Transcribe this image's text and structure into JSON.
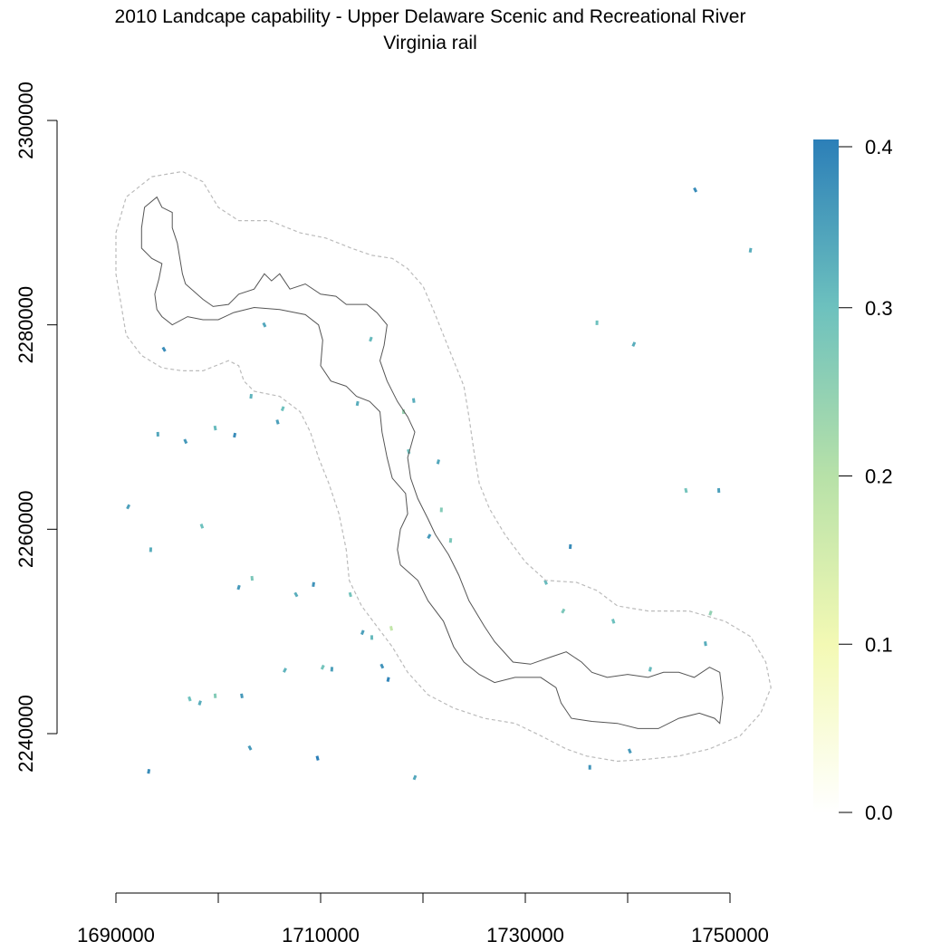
{
  "map": {
    "title": "2010 Landcape capability - Upper Delaware Scenic and Recreational River",
    "subtitle": "Virginia rail",
    "x_axis": {
      "ticks": [
        1690000,
        1700000,
        1710000,
        1720000,
        1730000,
        1740000,
        1750000
      ],
      "labels": [
        {
          "value": 1690000,
          "text": "1690000"
        },
        {
          "value": 1710000,
          "text": "1710000"
        },
        {
          "value": 1730000,
          "text": "1730000"
        },
        {
          "value": 1750000,
          "text": "1750000"
        }
      ]
    },
    "y_axis": {
      "ticks": [
        2240000,
        2260000,
        2280000,
        2300000
      ],
      "labels": [
        {
          "value": 2240000,
          "text": "2240000"
        },
        {
          "value": 2260000,
          "text": "2260000"
        },
        {
          "value": 2280000,
          "text": "2280000"
        },
        {
          "value": 2300000,
          "text": "2300000"
        }
      ]
    },
    "legend": {
      "placement": "right",
      "range": [
        0,
        0.4
      ],
      "labels": [
        {
          "value": 0.4,
          "text": "0.4"
        },
        {
          "value": 0.3,
          "text": "0.3"
        },
        {
          "value": 0.2,
          "text": "0.2"
        },
        {
          "value": 0.1,
          "text": "0.1"
        },
        {
          "value": 0.0,
          "text": "0.0"
        }
      ],
      "colors": {
        "0.0": "#ffffff",
        "0.1": "#f3f9b4",
        "0.2": "#b7e1a8",
        "0.3": "#6dc1be",
        "0.4": "#2c7fb8"
      }
    },
    "colors": {
      "boundary_line": "#555555",
      "buffer_line": "#bbbbbb",
      "axis": "#000000"
    },
    "boundary_outline": [
      [
        1692.8,
        2291.5
      ],
      [
        1694.0,
        2292.5
      ],
      [
        1694.5,
        2291.5
      ],
      [
        1695.5,
        2291.0
      ],
      [
        1695.5,
        2289.5
      ],
      [
        1696.0,
        2288.0
      ],
      [
        1696.5,
        2285.0
      ],
      [
        1696.8,
        2284.0
      ],
      [
        1698.5,
        2282.5
      ],
      [
        1699.5,
        2281.8
      ],
      [
        1701.0,
        2282.0
      ],
      [
        1702.0,
        2283.0
      ],
      [
        1703.5,
        2283.5
      ],
      [
        1704.5,
        2285.0
      ],
      [
        1705.2,
        2284.3
      ],
      [
        1706.0,
        2285.0
      ],
      [
        1707.0,
        2283.5
      ],
      [
        1708.5,
        2284.0
      ],
      [
        1710.0,
        2283.0
      ],
      [
        1711.5,
        2282.8
      ],
      [
        1712.5,
        2282.0
      ],
      [
        1714.5,
        2282.0
      ],
      [
        1715.5,
        2281.2
      ],
      [
        1716.5,
        2280.0
      ],
      [
        1716.2,
        2278.0
      ],
      [
        1715.8,
        2276.5
      ],
      [
        1716.5,
        2274.5
      ],
      [
        1717.5,
        2272.5
      ],
      [
        1718.5,
        2271.0
      ],
      [
        1719.2,
        2269.5
      ],
      [
        1718.5,
        2267.0
      ],
      [
        1718.8,
        2265.0
      ],
      [
        1719.5,
        2263.0
      ],
      [
        1720.5,
        2261.0
      ],
      [
        1721.2,
        2259.5
      ],
      [
        1722.5,
        2257.5
      ],
      [
        1723.5,
        2255.5
      ],
      [
        1724.5,
        2253.0
      ],
      [
        1726.0,
        2250.5
      ],
      [
        1727.0,
        2249.0
      ],
      [
        1728.8,
        2247.0
      ],
      [
        1730.5,
        2246.8
      ],
      [
        1732.5,
        2247.5
      ],
      [
        1734.0,
        2248.0
      ],
      [
        1735.5,
        2247.0
      ],
      [
        1736.5,
        2246.0
      ],
      [
        1738.0,
        2245.5
      ],
      [
        1740.0,
        2245.8
      ],
      [
        1742.0,
        2245.5
      ],
      [
        1743.5,
        2246.0
      ],
      [
        1745.0,
        2246.0
      ],
      [
        1746.5,
        2245.5
      ],
      [
        1748.0,
        2246.5
      ],
      [
        1749.0,
        2246.0
      ],
      [
        1749.3,
        2243.5
      ],
      [
        1749.0,
        2241.0
      ],
      [
        1748.5,
        2241.5
      ],
      [
        1747.0,
        2242.0
      ],
      [
        1745.0,
        2241.5
      ],
      [
        1743.0,
        2240.5
      ],
      [
        1741.0,
        2240.5
      ],
      [
        1739.0,
        2241.0
      ],
      [
        1736.5,
        2241.2
      ],
      [
        1734.5,
        2241.5
      ],
      [
        1733.5,
        2243.0
      ],
      [
        1733.0,
        2244.5
      ],
      [
        1731.5,
        2245.5
      ],
      [
        1729.0,
        2245.5
      ],
      [
        1727.0,
        2245.0
      ],
      [
        1725.5,
        2245.8
      ],
      [
        1724.0,
        2247.0
      ],
      [
        1723.0,
        2248.5
      ],
      [
        1722.0,
        2251.0
      ],
      [
        1720.5,
        2253.0
      ],
      [
        1719.5,
        2255.0
      ],
      [
        1717.8,
        2256.5
      ],
      [
        1717.5,
        2258.0
      ],
      [
        1717.8,
        2260.0
      ],
      [
        1718.5,
        2261.5
      ],
      [
        1718.3,
        2263.5
      ],
      [
        1717.0,
        2265.0
      ],
      [
        1716.5,
        2267.0
      ],
      [
        1716.0,
        2269.5
      ],
      [
        1715.8,
        2271.5
      ],
      [
        1714.8,
        2272.5
      ],
      [
        1713.5,
        2273.0
      ],
      [
        1712.5,
        2274.0
      ],
      [
        1711.0,
        2274.5
      ],
      [
        1710.0,
        2276.0
      ],
      [
        1710.2,
        2278.5
      ],
      [
        1709.8,
        2280.0
      ],
      [
        1708.5,
        2281.0
      ],
      [
        1706.0,
        2281.5
      ],
      [
        1703.5,
        2281.7
      ],
      [
        1701.5,
        2281.2
      ],
      [
        1700.0,
        2280.5
      ],
      [
        1698.5,
        2280.5
      ],
      [
        1697.0,
        2280.8
      ],
      [
        1695.5,
        2280.0
      ],
      [
        1694.5,
        2280.8
      ],
      [
        1694.0,
        2281.5
      ],
      [
        1693.8,
        2283.0
      ],
      [
        1694.2,
        2284.5
      ],
      [
        1694.5,
        2286.0
      ],
      [
        1693.5,
        2286.5
      ],
      [
        1692.5,
        2287.5
      ],
      [
        1692.5,
        2289.5
      ],
      [
        1692.8,
        2291.5
      ]
    ],
    "buffer_outline": [
      [
        1690.0,
        2289.0
      ],
      [
        1691.0,
        2292.5
      ],
      [
        1693.5,
        2294.5
      ],
      [
        1696.5,
        2295.0
      ],
      [
        1698.5,
        2294.0
      ],
      [
        1700.0,
        2291.5
      ],
      [
        1702.0,
        2290.2
      ],
      [
        1705.0,
        2290.2
      ],
      [
        1708.0,
        2289.0
      ],
      [
        1710.5,
        2288.5
      ],
      [
        1713.0,
        2287.5
      ],
      [
        1715.0,
        2286.8
      ],
      [
        1717.0,
        2286.5
      ],
      [
        1718.5,
        2285.5
      ],
      [
        1720.0,
        2283.8
      ],
      [
        1721.0,
        2281.5
      ],
      [
        1722.0,
        2279.0
      ],
      [
        1723.0,
        2276.5
      ],
      [
        1724.0,
        2274.0
      ],
      [
        1724.5,
        2271.0
      ],
      [
        1725.0,
        2267.5
      ],
      [
        1725.5,
        2264.5
      ],
      [
        1726.5,
        2262.0
      ],
      [
        1728.0,
        2259.5
      ],
      [
        1730.0,
        2256.8
      ],
      [
        1732.0,
        2255.0
      ],
      [
        1735.0,
        2254.8
      ],
      [
        1737.0,
        2254.0
      ],
      [
        1739.0,
        2252.5
      ],
      [
        1742.0,
        2252.0
      ],
      [
        1746.0,
        2252.0
      ],
      [
        1749.5,
        2251.0
      ],
      [
        1752.0,
        2249.5
      ],
      [
        1753.5,
        2247.0
      ],
      [
        1754.0,
        2244.5
      ],
      [
        1753.0,
        2242.0
      ],
      [
        1751.0,
        2239.8
      ],
      [
        1748.0,
        2238.5
      ],
      [
        1745.0,
        2237.8
      ],
      [
        1742.0,
        2237.5
      ],
      [
        1739.0,
        2237.3
      ],
      [
        1736.0,
        2237.8
      ],
      [
        1734.0,
        2238.5
      ],
      [
        1731.5,
        2239.8
      ],
      [
        1729.0,
        2241.0
      ],
      [
        1726.0,
        2241.5
      ],
      [
        1723.0,
        2242.5
      ],
      [
        1720.5,
        2243.8
      ],
      [
        1718.5,
        2246.0
      ],
      [
        1717.0,
        2248.5
      ],
      [
        1715.5,
        2250.5
      ],
      [
        1714.0,
        2252.5
      ],
      [
        1712.8,
        2255.0
      ],
      [
        1712.5,
        2258.0
      ],
      [
        1711.8,
        2261.5
      ],
      [
        1710.8,
        2264.5
      ],
      [
        1709.8,
        2267.0
      ],
      [
        1709.0,
        2269.5
      ],
      [
        1708.0,
        2271.5
      ],
      [
        1706.0,
        2273.0
      ],
      [
        1703.5,
        2273.5
      ],
      [
        1702.5,
        2274.5
      ],
      [
        1702.0,
        2276.0
      ],
      [
        1701.0,
        2276.5
      ],
      [
        1698.5,
        2275.5
      ],
      [
        1696.5,
        2275.5
      ],
      [
        1694.5,
        2275.8
      ],
      [
        1692.5,
        2277.0
      ],
      [
        1691.0,
        2279.0
      ],
      [
        1690.5,
        2282.0
      ],
      [
        1690.0,
        2285.0
      ],
      [
        1690.0,
        2289.0
      ]
    ],
    "capability_patches": [
      {
        "x": 1694.7,
        "y": 2277.6,
        "v": 0.38
      },
      {
        "x": 1703.2,
        "y": 2273.0,
        "v": 0.32
      },
      {
        "x": 1705.8,
        "y": 2270.5,
        "v": 0.35
      },
      {
        "x": 1706.3,
        "y": 2271.8,
        "v": 0.3
      },
      {
        "x": 1694.1,
        "y": 2269.3,
        "v": 0.34
      },
      {
        "x": 1696.8,
        "y": 2268.6,
        "v": 0.36
      },
      {
        "x": 1701.6,
        "y": 2269.2,
        "v": 0.38
      },
      {
        "x": 1699.7,
        "y": 2269.9,
        "v": 0.31
      },
      {
        "x": 1691.2,
        "y": 2262.2,
        "v": 0.35
      },
      {
        "x": 1693.4,
        "y": 2258.0,
        "v": 0.33
      },
      {
        "x": 1698.4,
        "y": 2260.3,
        "v": 0.3
      },
      {
        "x": 1702.0,
        "y": 2254.3,
        "v": 0.36
      },
      {
        "x": 1703.3,
        "y": 2255.2,
        "v": 0.28
      },
      {
        "x": 1707.6,
        "y": 2253.6,
        "v": 0.33
      },
      {
        "x": 1709.3,
        "y": 2254.6,
        "v": 0.37
      },
      {
        "x": 1712.9,
        "y": 2253.6,
        "v": 0.29
      },
      {
        "x": 1714.1,
        "y": 2249.9,
        "v": 0.35
      },
      {
        "x": 1715.0,
        "y": 2249.4,
        "v": 0.31
      },
      {
        "x": 1716.0,
        "y": 2246.6,
        "v": 0.37
      },
      {
        "x": 1716.6,
        "y": 2245.3,
        "v": 0.39
      },
      {
        "x": 1702.3,
        "y": 2243.7,
        "v": 0.36
      },
      {
        "x": 1706.5,
        "y": 2246.2,
        "v": 0.32
      },
      {
        "x": 1711.1,
        "y": 2246.3,
        "v": 0.35
      },
      {
        "x": 1697.2,
        "y": 2243.4,
        "v": 0.3
      },
      {
        "x": 1698.2,
        "y": 2243.0,
        "v": 0.33
      },
      {
        "x": 1699.7,
        "y": 2243.7,
        "v": 0.27
      },
      {
        "x": 1703.1,
        "y": 2238.6,
        "v": 0.36
      },
      {
        "x": 1693.2,
        "y": 2236.3,
        "v": 0.38
      },
      {
        "x": 1709.7,
        "y": 2237.6,
        "v": 0.4
      },
      {
        "x": 1719.2,
        "y": 2235.7,
        "v": 0.34
      },
      {
        "x": 1736.3,
        "y": 2236.7,
        "v": 0.37
      },
      {
        "x": 1740.2,
        "y": 2238.3,
        "v": 0.36
      },
      {
        "x": 1742.2,
        "y": 2246.3,
        "v": 0.31
      },
      {
        "x": 1747.6,
        "y": 2248.8,
        "v": 0.33
      },
      {
        "x": 1733.7,
        "y": 2252.0,
        "v": 0.28
      },
      {
        "x": 1734.4,
        "y": 2258.3,
        "v": 0.38
      },
      {
        "x": 1738.6,
        "y": 2251.0,
        "v": 0.3
      },
      {
        "x": 1748.1,
        "y": 2251.8,
        "v": 0.25
      },
      {
        "x": 1748.9,
        "y": 2263.8,
        "v": 0.35
      },
      {
        "x": 1746.6,
        "y": 2293.2,
        "v": 0.38
      },
      {
        "x": 1752.0,
        "y": 2287.3,
        "v": 0.33
      },
      {
        "x": 1745.7,
        "y": 2263.8,
        "v": 0.29
      },
      {
        "x": 1740.6,
        "y": 2278.1,
        "v": 0.33
      },
      {
        "x": 1737.0,
        "y": 2280.2,
        "v": 0.3
      },
      {
        "x": 1732.0,
        "y": 2254.8,
        "v": 0.31
      },
      {
        "x": 1721.5,
        "y": 2266.6,
        "v": 0.34
      },
      {
        "x": 1719.1,
        "y": 2272.6,
        "v": 0.33
      },
      {
        "x": 1720.6,
        "y": 2259.3,
        "v": 0.36
      },
      {
        "x": 1722.7,
        "y": 2258.9,
        "v": 0.28
      },
      {
        "x": 1718.6,
        "y": 2267.6,
        "v": 0.3
      },
      {
        "x": 1714.9,
        "y": 2278.6,
        "v": 0.31
      },
      {
        "x": 1718.1,
        "y": 2271.5,
        "v": 0.24
      },
      {
        "x": 1704.5,
        "y": 2280.0,
        "v": 0.34
      },
      {
        "x": 1713.6,
        "y": 2272.3,
        "v": 0.33
      },
      {
        "x": 1716.9,
        "y": 2250.3,
        "v": 0.18
      },
      {
        "x": 1710.2,
        "y": 2246.5,
        "v": 0.29
      },
      {
        "x": 1721.8,
        "y": 2261.9,
        "v": 0.27
      }
    ]
  }
}
